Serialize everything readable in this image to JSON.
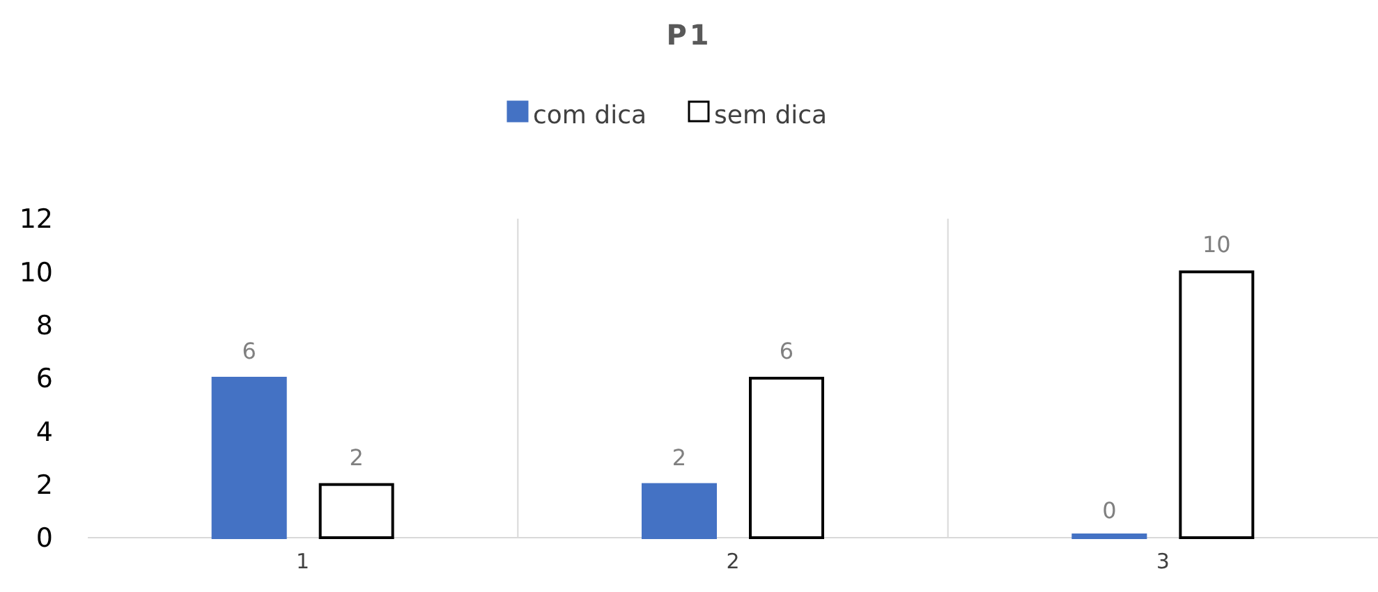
{
  "chart_data": {
    "type": "bar",
    "title": "P1",
    "categories": [
      "1",
      "2",
      "3"
    ],
    "series": [
      {
        "name": "com dica",
        "color": "#4472c4",
        "values": [
          6,
          2,
          0
        ]
      },
      {
        "name": "sem dica",
        "color": "#ffffff",
        "values": [
          2,
          6,
          10
        ]
      }
    ],
    "ylim": [
      0,
      12
    ],
    "yticks": [
      0,
      2,
      4,
      6,
      8,
      10,
      12
    ],
    "grid": "x",
    "legend": "top",
    "data_labels": true
  }
}
